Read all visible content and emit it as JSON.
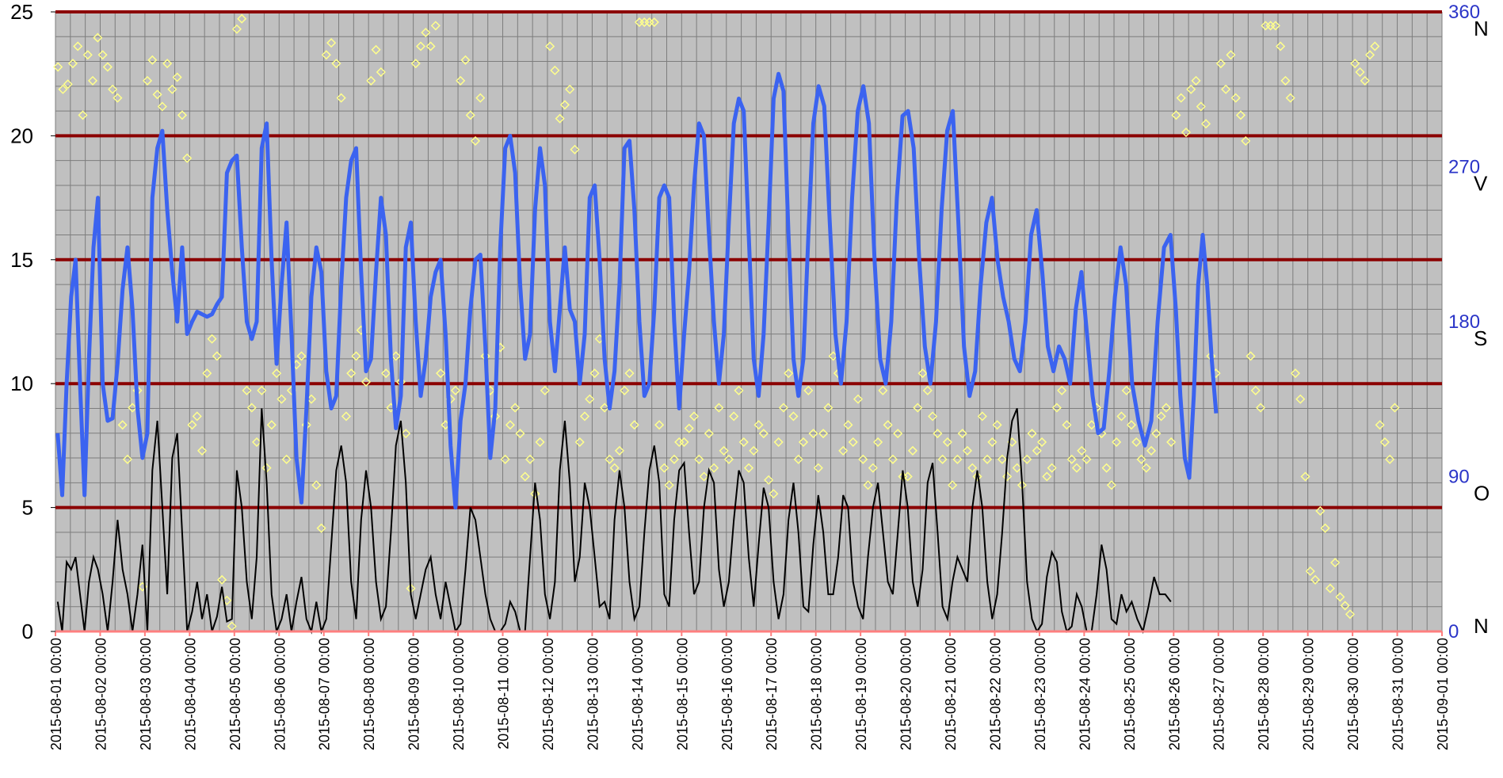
{
  "chart_data": {
    "type": "line",
    "grid": true,
    "legend": "none",
    "x_start": "2015-08-01 00:00",
    "x_end": "2015-09-01 00:00",
    "x_tick_labels": [
      "2015-08-01 00:00",
      "2015-08-02 00:00",
      "2015-08-03 00:00",
      "2015-08-04 00:00",
      "2015-08-05 00:00",
      "2015-08-06 00:00",
      "2015-08-07 00:00",
      "2015-08-08 00:00",
      "2015-08-09 00:00",
      "2015-08-10 00:00",
      "2015-08-11 00:00",
      "2015-08-12 00:00",
      "2015-08-13 00:00",
      "2015-08-14 00:00",
      "2015-08-15 00:00",
      "2015-08-16 00:00",
      "2015-08-17 00:00",
      "2015-08-18 00:00",
      "2015-08-19 00:00",
      "2015-08-20 00:00",
      "2015-08-21 00:00",
      "2015-08-22 00:00",
      "2015-08-23 00:00",
      "2015-08-24 00:00",
      "2015-08-25 00:00",
      "2015-08-26 00:00",
      "2015-08-27 00:00",
      "2015-08-28 00:00",
      "2015-08-29 00:00",
      "2015-08-30 00:00",
      "2015-08-31 00:00",
      "2015-09-01 00:00"
    ],
    "y_left": {
      "min": 0,
      "max": 25,
      "ticks": [
        0,
        5,
        10,
        15,
        20,
        25
      ]
    },
    "y_right": {
      "min": 0,
      "max": 360,
      "ticks": [
        0,
        90,
        180,
        270,
        360
      ],
      "direction_labels": [
        {
          "value": 0,
          "label": "N"
        },
        {
          "value": 90,
          "label": "O"
        },
        {
          "value": 180,
          "label": "S"
        },
        {
          "value": 270,
          "label": "V"
        },
        {
          "value": 360,
          "label": "N"
        }
      ]
    },
    "reference_lines": [
      5,
      10,
      15,
      20,
      25
    ],
    "series": [
      {
        "kind": "line",
        "axis": "left",
        "color": "#3b63f0",
        "points_per_day": [
          [
            8,
            5.5,
            10,
            13.5,
            15,
            10,
            5.5,
            11,
            15.5,
            17.5
          ],
          [
            10,
            8.5,
            8.6,
            10.8,
            13.8,
            15.5,
            13,
            9,
            7
          ],
          [
            8,
            17.5,
            19.5,
            20.2,
            17,
            14.5,
            12.5,
            15.5,
            12
          ],
          [
            12.5,
            12.9,
            12.8,
            12.7,
            12.8,
            13.2,
            13.5,
            18.5,
            19
          ],
          [
            19.2,
            15.5,
            12.5,
            11.8,
            12.5,
            19.5,
            20.5,
            15,
            10.8
          ],
          [
            14,
            16.5,
            12,
            7,
            5.2,
            9,
            13.5,
            15.5,
            14.5
          ],
          [
            10.5,
            9,
            9.5,
            14,
            17.5,
            19,
            19.5,
            14.5,
            10.5
          ],
          [
            11,
            14.5,
            17.5,
            16,
            11,
            8.2,
            9.5,
            15.5,
            16.5
          ],
          [
            12.5,
            9.5,
            11,
            13.5,
            14.5,
            15,
            12,
            7.5,
            5
          ],
          [
            8.5,
            10,
            13,
            15,
            15.2,
            11.5,
            7,
            9,
            15.5
          ],
          [
            19.5,
            20,
            18.5,
            14,
            11,
            12,
            17,
            19.5,
            18
          ],
          [
            12.5,
            10.5,
            13,
            15.5,
            13,
            12.5,
            10,
            12,
            17.5
          ],
          [
            18,
            15,
            11,
            9,
            10.5,
            14,
            19.5,
            19.8,
            17
          ],
          [
            12.5,
            9.5,
            10,
            13,
            17.5,
            18,
            17.5,
            12.5,
            9
          ],
          [
            12,
            14.5,
            18,
            20.5,
            20,
            16,
            12.5,
            10,
            12
          ],
          [
            16.5,
            20.5,
            21.5,
            21,
            16,
            11,
            9.5,
            12,
            16.5
          ],
          [
            21.5,
            22.5,
            21.8,
            16,
            11,
            9.5,
            11,
            16,
            20.5
          ],
          [
            22,
            21.2,
            16.5,
            12,
            10,
            12.5,
            17.5,
            21
          ],
          [
            22,
            20.5,
            15,
            11,
            10,
            12.5,
            17.5,
            20.8
          ],
          [
            21,
            19.5,
            15,
            11.5,
            10,
            12.5,
            17,
            20.2
          ],
          [
            21,
            16.5,
            11.5,
            9.5,
            10.5,
            14,
            16.5,
            17.5
          ],
          [
            15,
            13.5,
            12.5,
            11,
            10.5,
            12.5,
            16,
            17
          ],
          [
            14.5,
            11.5,
            10.5,
            11.5,
            11,
            10,
            13,
            14.5
          ],
          [
            12,
            9.5,
            8,
            8.2,
            10.5,
            13.5,
            15.5,
            14
          ],
          [
            10,
            8.5,
            7.5,
            8.5,
            12.5,
            15.5,
            16
          ],
          [
            13,
            9.5,
            7,
            6.2,
            9.5,
            14,
            16,
            14,
            11,
            8.8
          ]
        ]
      },
      {
        "kind": "line",
        "axis": "left",
        "color": "#000000",
        "points_per_day": [
          [
            1.2,
            0,
            2.8,
            2.5,
            3,
            1.5,
            0,
            2,
            3,
            2.5
          ],
          [
            1.5,
            0,
            2,
            4.5,
            2.5,
            1.5,
            0,
            1.5,
            3.5
          ],
          [
            0,
            6.5,
            8.5,
            5,
            1.5,
            7,
            8,
            4,
            0
          ],
          [
            0.8,
            2,
            0.5,
            1.5,
            0,
            0.6,
            1.8,
            0.4,
            0.5
          ],
          [
            6.5,
            5,
            2,
            0.5,
            3,
            9,
            6,
            1.5,
            0
          ],
          [
            0.5,
            1.5,
            0,
            1.2,
            2.2,
            0.5,
            0,
            1.2,
            0
          ],
          [
            0.5,
            3.5,
            6.5,
            7.5,
            6,
            2,
            0.5,
            4.5,
            6.5
          ],
          [
            5,
            2,
            0.5,
            1,
            4,
            7.5,
            8.5,
            6,
            1.5
          ],
          [
            0.5,
            1.5,
            2.5,
            3,
            1.5,
            0.5,
            2,
            1,
            0
          ],
          [
            0.3,
            2.5,
            5,
            4.5,
            3,
            1.5,
            0.5,
            0,
            0
          ],
          [
            0.3,
            1.2,
            0.8,
            0,
            0,
            3,
            6,
            4.5,
            1.5
          ],
          [
            0.5,
            2,
            6.5,
            8.5,
            6,
            2,
            3,
            6,
            5
          ],
          [
            3,
            1,
            1.2,
            0.5,
            4.5,
            6.5,
            5,
            2,
            0.5
          ],
          [
            1,
            4,
            6.5,
            7.5,
            6,
            1.5,
            1,
            4.5,
            6.5
          ],
          [
            6.8,
            4,
            1.5,
            2,
            5,
            6.5,
            6,
            2.5,
            1
          ],
          [
            2,
            4.5,
            6.5,
            6,
            3,
            1,
            3.5,
            5.8,
            5
          ],
          [
            2,
            0.5,
            1.5,
            4.5,
            6,
            4,
            1,
            0.8,
            3.5
          ],
          [
            5.5,
            4,
            1.5,
            1.5,
            3,
            5.5,
            5,
            2,
            1
          ],
          [
            0.5,
            3,
            5,
            6,
            4,
            2,
            1.5,
            4,
            6.5
          ],
          [
            5,
            2,
            1,
            2.5,
            6,
            6.8,
            4,
            1,
            0.5
          ],
          [
            2,
            3,
            2.5,
            2,
            5,
            6.5,
            5,
            2,
            0.5
          ],
          [
            1.5,
            4,
            7,
            8.5,
            9,
            6,
            2,
            0.5,
            0
          ],
          [
            0.3,
            2.2,
            3.2,
            2.8,
            0.8,
            0,
            0.2,
            1.5,
            1
          ],
          [
            0,
            0,
            1.5,
            3.5,
            2.5,
            0.5,
            0.3,
            1.5,
            0.8
          ],
          [
            1.2,
            0.5,
            0,
            1,
            2.2,
            1.5,
            1.5,
            1.2
          ]
        ]
      },
      {
        "kind": "scatter",
        "axis": "right",
        "marker": "diamond",
        "color": "#ffff8c",
        "points_per_day": [
          [
            328,
            315,
            318,
            330,
            340,
            300,
            335,
            320,
            345
          ],
          [
            335,
            328,
            315,
            310,
            120,
            100,
            130,
            140,
            26
          ],
          [
            320,
            332,
            312,
            305,
            330,
            315,
            322,
            300,
            275
          ],
          [
            120,
            125,
            105,
            150,
            170,
            160,
            30,
            18,
            3
          ],
          [
            350,
            356,
            140,
            130,
            110,
            140,
            95,
            120,
            150
          ],
          [
            135,
            100,
            140,
            155,
            160,
            120,
            135,
            85,
            60
          ],
          [
            335,
            342,
            330,
            310,
            125,
            150,
            160,
            175,
            145
          ],
          [
            320,
            338,
            325,
            150,
            130,
            160,
            145,
            115,
            25
          ],
          [
            330,
            340,
            348,
            340,
            352,
            150,
            120,
            135,
            140
          ],
          [
            320,
            332,
            300,
            285,
            310,
            160,
            140,
            125,
            165
          ],
          [
            100,
            120,
            130,
            115,
            90,
            100,
            80,
            110,
            140
          ],
          [
            340,
            326,
            298,
            306,
            315,
            280,
            110,
            125,
            135
          ],
          [
            150,
            170,
            130,
            100,
            95,
            105,
            140,
            150,
            120
          ],
          [
            354,
            354,
            354,
            354,
            120,
            95,
            85,
            100,
            110
          ],
          [
            110,
            118,
            125,
            100,
            90,
            115,
            95,
            130,
            105
          ],
          [
            100,
            125,
            140,
            110,
            95,
            105,
            120,
            115,
            88
          ],
          [
            80,
            110,
            130,
            150,
            125,
            100,
            110,
            140,
            115
          ],
          [
            95,
            115,
            130,
            160,
            150,
            105,
            120,
            110,
            135
          ],
          [
            100,
            85,
            95,
            110,
            140,
            120,
            100,
            115,
            90
          ],
          [
            90,
            105,
            130,
            150,
            140,
            125,
            115,
            100,
            110
          ],
          [
            85,
            100,
            115,
            105,
            95,
            90,
            125,
            100,
            110
          ],
          [
            120,
            100,
            90,
            110,
            95,
            85,
            100,
            115,
            105
          ],
          [
            110,
            90,
            95,
            130,
            140,
            120,
            100,
            95,
            105
          ],
          [
            100,
            120,
            130,
            115,
            95,
            85,
            110,
            125,
            140
          ],
          [
            120,
            110,
            100,
            95,
            105,
            115,
            125,
            130,
            110
          ],
          [
            300,
            310,
            290,
            315,
            320,
            305,
            295,
            160,
            150
          ],
          [
            330,
            315,
            335,
            310,
            300,
            285,
            160,
            140,
            130
          ],
          [
            352,
            352,
            352,
            340,
            320,
            310,
            150,
            135,
            90
          ],
          [
            35,
            30,
            70,
            60,
            25,
            40,
            20,
            15,
            10
          ],
          [
            330,
            325,
            320,
            335,
            340,
            120,
            110,
            100,
            130
          ]
        ]
      }
    ]
  }
}
